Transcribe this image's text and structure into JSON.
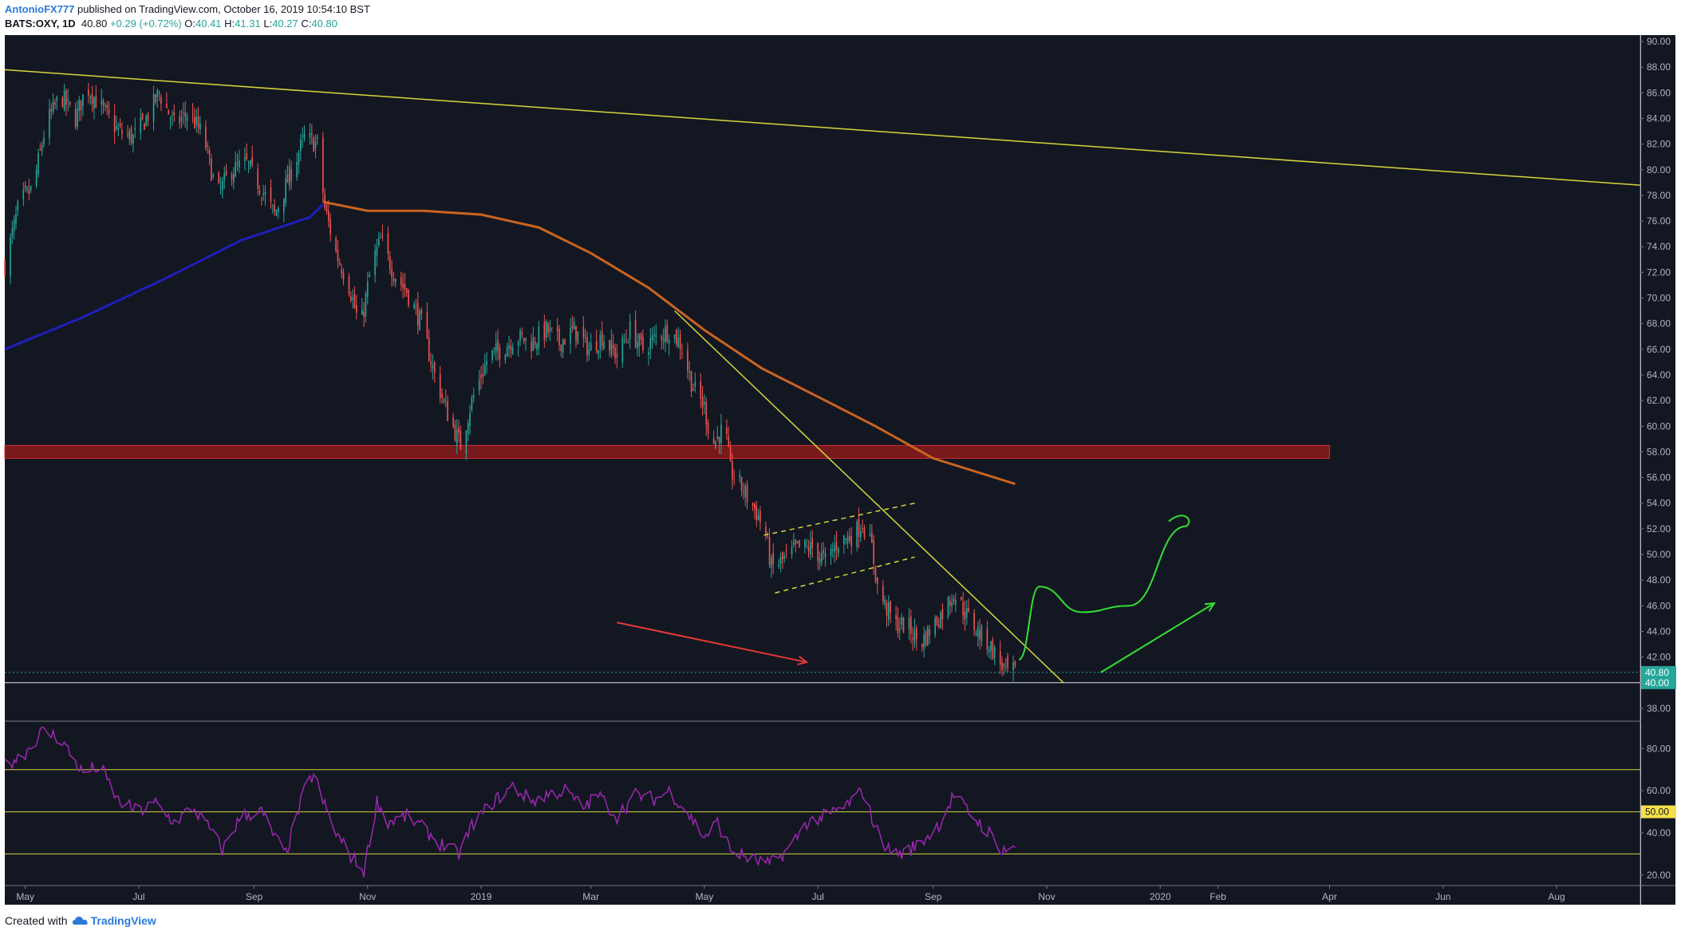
{
  "header": {
    "author": "AntonioFX777",
    "published": "published on TradingView.com, October 16, 2019 10:54:10 BST",
    "symbol": "BATS:OXY, 1D",
    "last": "40.80",
    "change": "+0.29 (+0.72%)",
    "o_label": "O:",
    "o": "40.41",
    "h_label": "H:",
    "h": "41.31",
    "l_label": "L:",
    "l": "40.27",
    "c_label": "C:",
    "c": "40.80"
  },
  "footer": {
    "created_with": "Created with",
    "brand": "TradingView"
  },
  "colors": {
    "background": "#131722",
    "up": "#26a69a",
    "down": "#ef5350",
    "ma_fast": "#1f1fb8",
    "ma_slow": "#c9641e",
    "trendline": "#d6d63a",
    "rsi": "#9c27b0",
    "zone": "#8b1a1a",
    "annotation_red": "#e53935",
    "annotation_green": "#33e033",
    "price_tag": "#26a69a",
    "rsi_tag": "#f5e04a"
  },
  "chart_data": {
    "type": "candlestick",
    "price_axis": {
      "ylim": [
        37,
        90.5
      ],
      "ticks": [
        "90.00",
        "88.00",
        "86.00",
        "84.00",
        "82.00",
        "80.00",
        "78.00",
        "76.00",
        "74.00",
        "72.00",
        "70.00",
        "68.00",
        "66.00",
        "64.00",
        "62.00",
        "60.00",
        "58.00",
        "56.00",
        "54.00",
        "52.00",
        "50.00",
        "48.00",
        "46.00",
        "44.00",
        "42.00",
        "40.00",
        "38.00"
      ],
      "last_price_tag": "40.80",
      "level_tag": "40.00"
    },
    "x_axis": {
      "range": [
        "2018-04-20",
        "2020-09-15"
      ],
      "ticks": [
        {
          "label": "May",
          "date": "2018-05-01"
        },
        {
          "label": "Jul",
          "date": "2018-07-01"
        },
        {
          "label": "Sep",
          "date": "2018-09-01"
        },
        {
          "label": "Nov",
          "date": "2018-11-01"
        },
        {
          "label": "2019",
          "date": "2019-01-01"
        },
        {
          "label": "Mar",
          "date": "2019-03-01"
        },
        {
          "label": "May",
          "date": "2019-05-01"
        },
        {
          "label": "Jul",
          "date": "2019-07-01"
        },
        {
          "label": "Sep",
          "date": "2019-09-01"
        },
        {
          "label": "Nov",
          "date": "2019-11-01"
        },
        {
          "label": "2020",
          "date": "2020-01-01"
        },
        {
          "label": "Feb",
          "date": "2020-02-01"
        },
        {
          "label": "Apr",
          "date": "2020-04-01"
        },
        {
          "label": "Jun",
          "date": "2020-06-01"
        },
        {
          "label": "Aug",
          "date": "2020-08-01"
        }
      ]
    },
    "close_path": [
      [
        "2018-04-20",
        72.5
      ],
      [
        "2018-04-28",
        77.5
      ],
      [
        "2018-05-05",
        78.5
      ],
      [
        "2018-05-12",
        83.5
      ],
      [
        "2018-05-20",
        85.8
      ],
      [
        "2018-05-28",
        84.0
      ],
      [
        "2018-06-03",
        86.5
      ],
      [
        "2018-06-10",
        85.0
      ],
      [
        "2018-06-20",
        83.0
      ],
      [
        "2018-06-28",
        82.5
      ],
      [
        "2018-07-05",
        84.0
      ],
      [
        "2018-07-12",
        86.0
      ],
      [
        "2018-07-20",
        83.5
      ],
      [
        "2018-07-28",
        84.5
      ],
      [
        "2018-08-05",
        82.5
      ],
      [
        "2018-08-12",
        78.0
      ],
      [
        "2018-08-20",
        80.0
      ],
      [
        "2018-08-28",
        80.5
      ],
      [
        "2018-09-05",
        78.5
      ],
      [
        "2018-09-12",
        76.5
      ],
      [
        "2018-09-20",
        79.5
      ],
      [
        "2018-09-28",
        82.5
      ],
      [
        "2018-10-05",
        82.0
      ],
      [
        "2018-10-09",
        77.0
      ],
      [
        "2018-10-15",
        73.5
      ],
      [
        "2018-10-22",
        71.0
      ],
      [
        "2018-10-28",
        67.5
      ],
      [
        "2018-11-03",
        72.5
      ],
      [
        "2018-11-08",
        74.5
      ],
      [
        "2018-11-15",
        72.0
      ],
      [
        "2018-11-22",
        70.5
      ],
      [
        "2018-11-30",
        68.0
      ],
      [
        "2018-12-07",
        64.0
      ],
      [
        "2018-12-14",
        61.0
      ],
      [
        "2018-12-21",
        58.5
      ],
      [
        "2018-12-27",
        62.0
      ],
      [
        "2019-01-05",
        65.5
      ],
      [
        "2019-01-12",
        66.0
      ],
      [
        "2019-01-20",
        67.0
      ],
      [
        "2019-01-28",
        66.5
      ],
      [
        "2019-02-05",
        67.5
      ],
      [
        "2019-02-12",
        66.5
      ],
      [
        "2019-02-20",
        67.5
      ],
      [
        "2019-02-28",
        66.0
      ],
      [
        "2019-03-07",
        67.0
      ],
      [
        "2019-03-15",
        65.5
      ],
      [
        "2019-03-22",
        67.5
      ],
      [
        "2019-03-29",
        66.0
      ],
      [
        "2019-04-05",
        67.0
      ],
      [
        "2019-04-12",
        67.5
      ],
      [
        "2019-04-18",
        66.5
      ],
      [
        "2019-04-25",
        63.0
      ],
      [
        "2019-05-01",
        61.5
      ],
      [
        "2019-05-05",
        58.5
      ],
      [
        "2019-05-12",
        60.0
      ],
      [
        "2019-05-15",
        56.5
      ],
      [
        "2019-05-22",
        55.0
      ],
      [
        "2019-05-30",
        53.0
      ],
      [
        "2019-06-03",
        51.5
      ],
      [
        "2019-06-06",
        49.0
      ],
      [
        "2019-06-12",
        49.5
      ],
      [
        "2019-06-20",
        50.5
      ],
      [
        "2019-06-28",
        50.5
      ],
      [
        "2019-07-05",
        49.5
      ],
      [
        "2019-07-12",
        51.0
      ],
      [
        "2019-07-20",
        51.5
      ],
      [
        "2019-07-25",
        52.5
      ],
      [
        "2019-07-30",
        50.5
      ],
      [
        "2019-08-02",
        47.5
      ],
      [
        "2019-08-06",
        46.0
      ],
      [
        "2019-08-12",
        44.5
      ],
      [
        "2019-08-18",
        44.5
      ],
      [
        "2019-08-25",
        43.0
      ],
      [
        "2019-09-01",
        44.5
      ],
      [
        "2019-09-06",
        45.5
      ],
      [
        "2019-09-12",
        47.0
      ],
      [
        "2019-09-18",
        45.5
      ],
      [
        "2019-09-25",
        44.0
      ],
      [
        "2019-10-01",
        43.0
      ],
      [
        "2019-10-07",
        41.5
      ],
      [
        "2019-10-11",
        40.8
      ],
      [
        "2019-10-15",
        40.8
      ]
    ],
    "ma_fast": [
      [
        "2018-04-20",
        66.0
      ],
      [
        "2018-06-01",
        68.5
      ],
      [
        "2018-07-15",
        71.5
      ],
      [
        "2018-08-25",
        74.5
      ],
      [
        "2018-10-01",
        76.3
      ],
      [
        "2018-10-08",
        77.3
      ]
    ],
    "ma_slow": [
      [
        "2018-10-08",
        77.5
      ],
      [
        "2018-11-01",
        76.8
      ],
      [
        "2018-12-01",
        76.8
      ],
      [
        "2019-01-01",
        76.5
      ],
      [
        "2019-02-01",
        75.5
      ],
      [
        "2019-03-01",
        73.5
      ],
      [
        "2019-04-01",
        70.8
      ],
      [
        "2019-05-01",
        67.5
      ],
      [
        "2019-06-01",
        64.5
      ],
      [
        "2019-07-01",
        62.3
      ],
      [
        "2019-08-01",
        60.0
      ],
      [
        "2019-09-01",
        57.5
      ],
      [
        "2019-10-15",
        55.5
      ]
    ],
    "trendlines": [
      {
        "from": [
          "2018-04-20",
          87.8
        ],
        "to": [
          "2020-09-15",
          78.8
        ]
      },
      {
        "from": [
          "2019-04-15",
          69.0
        ],
        "to": [
          "2019-11-10",
          40.0
        ]
      }
    ],
    "channel": {
      "upper": {
        "from": [
          "2019-06-02",
          51.5
        ],
        "to": [
          "2019-08-22",
          54.0
        ]
      },
      "lower": {
        "from": [
          "2019-06-08",
          47.0
        ],
        "to": [
          "2019-08-22",
          49.8
        ]
      }
    },
    "resistance_zone": {
      "from": "2018-04-20",
      "to": "2020-04-01",
      "low": 57.5,
      "high": 58.5
    },
    "horizontal_levels": [
      40.0,
      40.8
    ],
    "annotations": [
      {
        "kind": "arrow",
        "color": "red",
        "from": [
          "2019-03-15",
          44.7
        ],
        "to": [
          "2019-06-25",
          41.6
        ]
      },
      {
        "kind": "curve",
        "color": "green",
        "points": [
          [
            "2019-10-17",
            41.8
          ],
          [
            "2019-10-28",
            47.5
          ],
          [
            "2019-11-20",
            45.5
          ],
          [
            "2019-12-15",
            46.0
          ],
          [
            "2020-01-15",
            52.2
          ]
        ]
      },
      {
        "kind": "arrow",
        "color": "green",
        "from": [
          "2019-11-30",
          40.8
        ],
        "to": [
          "2020-01-30",
          46.2
        ]
      }
    ],
    "rsi": {
      "ylim": [
        15,
        93
      ],
      "ticks": [
        "80.00",
        "60.00",
        "40.00",
        "20.00"
      ],
      "levels": [
        70,
        50,
        30
      ],
      "level_tag": "50.00",
      "values": [
        [
          "2018-04-20",
          72
        ],
        [
          "2018-05-01",
          78
        ],
        [
          "2018-05-10",
          88
        ],
        [
          "2018-05-20",
          85
        ],
        [
          "2018-06-01",
          68
        ],
        [
          "2018-06-10",
          72
        ],
        [
          "2018-06-20",
          55
        ],
        [
          "2018-07-01",
          50
        ],
        [
          "2018-07-10",
          54
        ],
        [
          "2018-07-20",
          45
        ],
        [
          "2018-07-30",
          52
        ],
        [
          "2018-08-08",
          42
        ],
        [
          "2018-08-15",
          32
        ],
        [
          "2018-08-25",
          48
        ],
        [
          "2018-09-05",
          50
        ],
        [
          "2018-09-12",
          38
        ],
        [
          "2018-09-18",
          30
        ],
        [
          "2018-09-28",
          60
        ],
        [
          "2018-10-03",
          68
        ],
        [
          "2018-10-08",
          55
        ],
        [
          "2018-10-15",
          40
        ],
        [
          "2018-10-22",
          30
        ],
        [
          "2018-10-30",
          22
        ],
        [
          "2018-11-06",
          55
        ],
        [
          "2018-11-12",
          45
        ],
        [
          "2018-11-22",
          48
        ],
        [
          "2018-12-01",
          42
        ],
        [
          "2018-12-10",
          35
        ],
        [
          "2018-12-20",
          30
        ],
        [
          "2018-12-28",
          45
        ],
        [
          "2019-01-08",
          55
        ],
        [
          "2019-01-18",
          62
        ],
        [
          "2019-01-28",
          55
        ],
        [
          "2019-02-05",
          58
        ],
        [
          "2019-02-15",
          60
        ],
        [
          "2019-02-25",
          52
        ],
        [
          "2019-03-05",
          58
        ],
        [
          "2019-03-15",
          48
        ],
        [
          "2019-03-25",
          58
        ],
        [
          "2019-04-05",
          56
        ],
        [
          "2019-04-12",
          60
        ],
        [
          "2019-04-20",
          52
        ],
        [
          "2019-05-01",
          38
        ],
        [
          "2019-05-08",
          45
        ],
        [
          "2019-05-15",
          32
        ],
        [
          "2019-05-25",
          28
        ],
        [
          "2019-06-05",
          25
        ],
        [
          "2019-06-15",
          32
        ],
        [
          "2019-06-25",
          45
        ],
        [
          "2019-07-05",
          48
        ],
        [
          "2019-07-15",
          52
        ],
        [
          "2019-07-25",
          60
        ],
        [
          "2019-08-01",
          42
        ],
        [
          "2019-08-08",
          32
        ],
        [
          "2019-08-15",
          30
        ],
        [
          "2019-08-25",
          35
        ],
        [
          "2019-09-05",
          45
        ],
        [
          "2019-09-12",
          58
        ],
        [
          "2019-09-20",
          50
        ],
        [
          "2019-10-01",
          40
        ],
        [
          "2019-10-08",
          32
        ],
        [
          "2019-10-15",
          33
        ]
      ]
    }
  }
}
